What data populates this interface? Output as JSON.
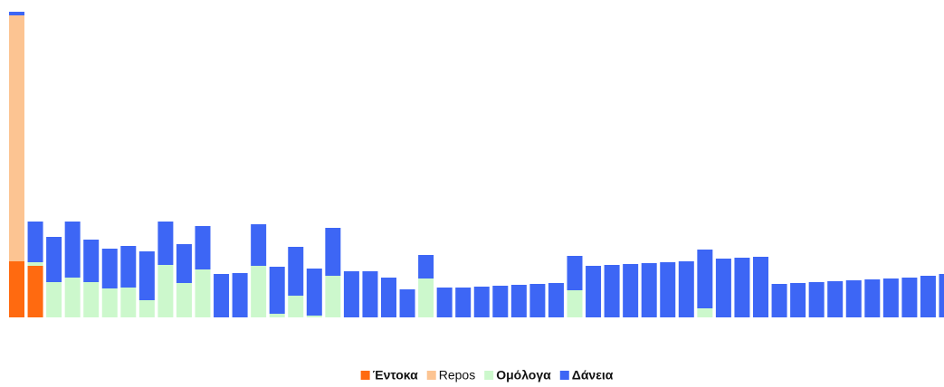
{
  "chart_data": {
    "type": "stacked_bar",
    "categories": [
      null,
      null,
      null,
      null,
      null,
      null,
      null,
      null,
      null,
      null,
      null,
      null,
      null,
      null,
      null,
      null,
      null,
      null,
      null,
      null,
      null,
      null,
      null,
      null,
      null,
      null,
      null,
      null,
      null,
      null,
      null,
      null,
      null,
      null,
      null,
      null,
      null,
      null,
      null,
      null,
      null,
      null,
      null,
      null,
      null,
      null,
      null,
      null,
      null,
      null,
      null
    ],
    "series": [
      {
        "name": "Έντοκα",
        "color": "#ff6a10",
        "values": [
          62,
          57,
          0,
          0,
          0,
          0,
          0,
          0,
          0,
          0,
          0,
          0,
          0,
          0,
          0,
          0,
          0,
          0,
          0,
          0,
          0,
          0,
          0,
          0,
          0,
          0,
          0,
          0,
          0,
          0,
          0,
          0,
          0,
          0,
          0,
          0,
          0,
          0,
          0,
          0,
          0,
          0,
          0,
          0,
          0,
          0,
          0,
          0,
          0,
          0,
          0
        ]
      },
      {
        "name": "Repos",
        "color": "#fcc492",
        "values": [
          272,
          0,
          0,
          0,
          0,
          0,
          0,
          0,
          0,
          0,
          0,
          0,
          0,
          0,
          0,
          0,
          0,
          0,
          0,
          0,
          0,
          0,
          0,
          0,
          0,
          0,
          0,
          0,
          0,
          0,
          0,
          0,
          0,
          0,
          0,
          0,
          0,
          0,
          0,
          0,
          0,
          0,
          0,
          0,
          0,
          0,
          0,
          0,
          0,
          0,
          0
        ]
      },
      {
        "name": "Ομόλογα",
        "color": "#ccf8cc",
        "values": [
          0,
          4,
          39,
          44,
          39,
          32,
          33,
          19,
          58,
          38,
          53,
          0,
          0,
          57,
          4,
          24,
          2,
          46,
          0,
          0,
          0,
          0,
          43,
          0,
          0,
          0,
          0,
          0,
          0,
          0,
          30,
          0,
          0,
          0,
          0,
          0,
          0,
          10,
          0,
          0,
          0,
          0,
          0,
          0,
          0,
          0,
          0,
          0,
          0,
          0,
          0
        ]
      },
      {
        "name": "Δάνεια",
        "color": "#3d66f5",
        "values": [
          4,
          45,
          50,
          62,
          47,
          44,
          46,
          54,
          48,
          43,
          48,
          48,
          49,
          46,
          52,
          54,
          52,
          53,
          51,
          51,
          44,
          31,
          26,
          33,
          33,
          34,
          35,
          36,
          37,
          38,
          38,
          57,
          58,
          59,
          60,
          61,
          62,
          65,
          65,
          66,
          67,
          37,
          38,
          39,
          40,
          41,
          42,
          43,
          44,
          46,
          48
        ]
      }
    ],
    "ylim": [
      0,
      340
    ]
  }
}
